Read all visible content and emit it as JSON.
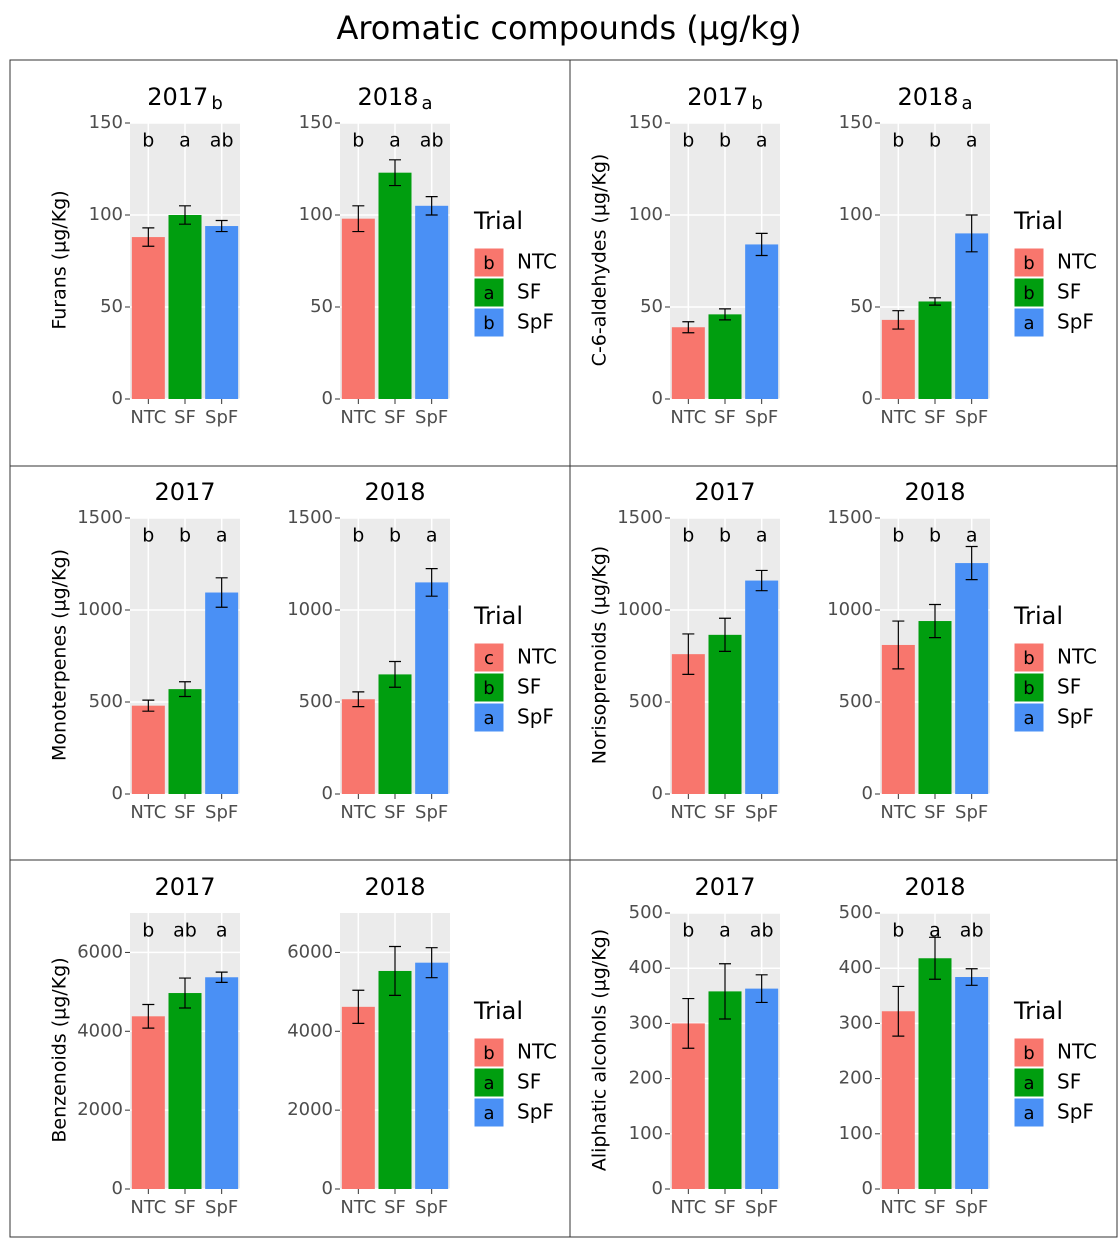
{
  "title": "Aromatic compounds (µg/kg)",
  "chart_data": [
    {
      "type": "bar",
      "ylabel": "Furans (µg/Kg)",
      "categories": [
        "NTC",
        "SF",
        "SpF"
      ],
      "colors": [
        "#F8766D",
        "#009E0F",
        "#4A90F5"
      ],
      "ylim": [
        0,
        150
      ],
      "yticks": [
        0,
        50,
        100,
        150
      ],
      "legend": {
        "title": "Trial",
        "letters": [
          "b",
          "a",
          "b"
        ]
      },
      "facets": [
        {
          "title": "2017",
          "title_note": "b",
          "values": [
            88,
            100,
            94
          ],
          "errors": [
            5,
            5,
            3
          ],
          "letters": [
            "b",
            "a",
            "ab"
          ]
        },
        {
          "title": "2018",
          "title_note": "a",
          "values": [
            98,
            123,
            105
          ],
          "errors": [
            7,
            7,
            5
          ],
          "letters": [
            "b",
            "a",
            "ab"
          ]
        }
      ]
    },
    {
      "type": "bar",
      "ylabel": "C-6-aldehydes (µg/Kg)",
      "categories": [
        "NTC",
        "SF",
        "SpF"
      ],
      "colors": [
        "#F8766D",
        "#009E0F",
        "#4A90F5"
      ],
      "ylim": [
        0,
        150
      ],
      "yticks": [
        0,
        50,
        100,
        150
      ],
      "legend": {
        "title": "Trial",
        "letters": [
          "b",
          "b",
          "a"
        ]
      },
      "facets": [
        {
          "title": "2017",
          "title_note": "b",
          "values": [
            39,
            46,
            84
          ],
          "errors": [
            3,
            3,
            6
          ],
          "letters": [
            "b",
            "b",
            "a"
          ]
        },
        {
          "title": "2018",
          "title_note": "a",
          "values": [
            43,
            53,
            90
          ],
          "errors": [
            5,
            2,
            10
          ],
          "letters": [
            "b",
            "b",
            "a"
          ]
        }
      ]
    },
    {
      "type": "bar",
      "ylabel": "Monoterpenes (µg/Kg)",
      "categories": [
        "NTC",
        "SF",
        "SpF"
      ],
      "colors": [
        "#F8766D",
        "#009E0F",
        "#4A90F5"
      ],
      "ylim": [
        0,
        1500
      ],
      "yticks": [
        0,
        500,
        1000,
        1500
      ],
      "legend": {
        "title": "Trial",
        "letters": [
          "c",
          "b",
          "a"
        ]
      },
      "facets": [
        {
          "title": "2017",
          "values": [
            480,
            570,
            1095
          ],
          "errors": [
            30,
            40,
            80
          ],
          "letters": [
            "b",
            "b",
            "a"
          ]
        },
        {
          "title": "2018",
          "values": [
            515,
            650,
            1150
          ],
          "errors": [
            40,
            70,
            75
          ],
          "letters": [
            "b",
            "b",
            "a"
          ]
        }
      ]
    },
    {
      "type": "bar",
      "ylabel": "Norisoprenoids (µg/Kg)",
      "categories": [
        "NTC",
        "SF",
        "SpF"
      ],
      "colors": [
        "#F8766D",
        "#009E0F",
        "#4A90F5"
      ],
      "ylim": [
        0,
        1500
      ],
      "yticks": [
        0,
        500,
        1000,
        1500
      ],
      "legend": {
        "title": "Trial",
        "letters": [
          "b",
          "b",
          "a"
        ]
      },
      "facets": [
        {
          "title": "2017",
          "values": [
            760,
            865,
            1160
          ],
          "errors": [
            110,
            90,
            55
          ],
          "letters": [
            "b",
            "b",
            "a"
          ]
        },
        {
          "title": "2018",
          "values": [
            810,
            940,
            1255
          ],
          "errors": [
            130,
            90,
            90
          ],
          "letters": [
            "b",
            "b",
            "a"
          ]
        }
      ]
    },
    {
      "type": "bar",
      "ylabel": "Benzenoids (µg/Kg)",
      "categories": [
        "NTC",
        "SF",
        "SpF"
      ],
      "colors": [
        "#F8766D",
        "#009E0F",
        "#4A90F5"
      ],
      "ylim": [
        0,
        7000
      ],
      "yticks": [
        0,
        2000,
        4000,
        6000
      ],
      "legend": {
        "title": "Trial",
        "letters": [
          "b",
          "a",
          "a"
        ]
      },
      "facets": [
        {
          "title": "2017",
          "values": [
            4380,
            4970,
            5370
          ],
          "errors": [
            300,
            380,
            130
          ],
          "letters": [
            "b",
            "ab",
            "a"
          ]
        },
        {
          "title": "2018",
          "values": [
            4620,
            5530,
            5740
          ],
          "errors": [
            420,
            620,
            380
          ]
        }
      ]
    },
    {
      "type": "bar",
      "ylabel": "Aliphatic alcohols (µg/Kg)",
      "categories": [
        "NTC",
        "SF",
        "SpF"
      ],
      "colors": [
        "#F8766D",
        "#009E0F",
        "#4A90F5"
      ],
      "ylim": [
        0,
        500
      ],
      "yticks": [
        0,
        100,
        200,
        300,
        400,
        500
      ],
      "legend": {
        "title": "Trial",
        "letters": [
          "b",
          "a",
          "a"
        ]
      },
      "facets": [
        {
          "title": "2017",
          "values": [
            300,
            358,
            363
          ],
          "errors": [
            45,
            50,
            25
          ],
          "letters": [
            "b",
            "a",
            "ab"
          ]
        },
        {
          "title": "2018",
          "values": [
            322,
            418,
            384
          ],
          "errors": [
            45,
            38,
            15
          ],
          "letters": [
            "b",
            "a",
            "ab"
          ]
        }
      ]
    }
  ]
}
